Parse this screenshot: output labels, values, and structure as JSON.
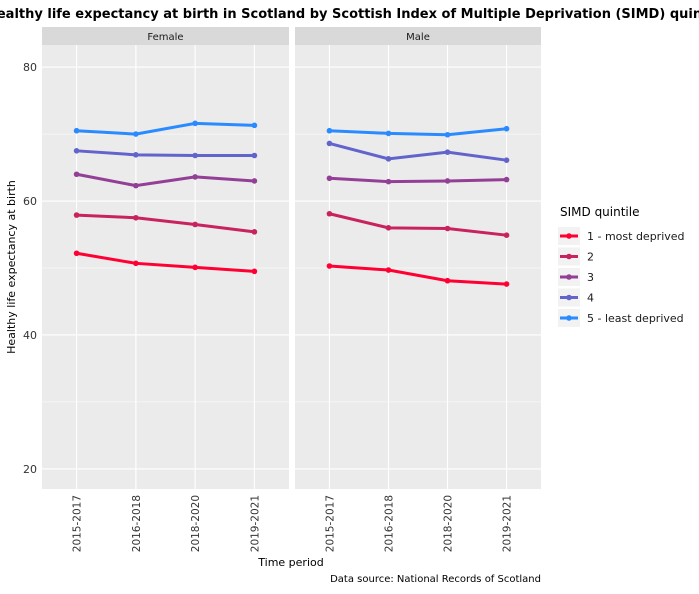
{
  "chart_data": {
    "type": "line",
    "title": "Healthy life expectancy at birth in Scotland by Scottish Index of Multiple Deprivation (SIMD) quintile",
    "xlabel": "Time period",
    "ylabel": "Healthy life expectancy at birth",
    "caption": "Data source: National Records of Scotland",
    "legend_title": "SIMD quintile",
    "legend_position": "right",
    "grid": true,
    "ylim": [
      17,
      83.3
    ],
    "yticks": [
      20,
      40,
      60,
      80
    ],
    "categories": [
      "2015-2017",
      "2016-2018",
      "2018-2020",
      "2019-2021"
    ],
    "panels": [
      {
        "name": "Female",
        "series": [
          {
            "name": "1 - most deprived",
            "color": "#ff0033",
            "values": [
              52.2,
              50.7,
              50.1,
              49.5
            ]
          },
          {
            "name": "2",
            "color": "#c8235e",
            "values": [
              57.9,
              57.5,
              56.5,
              55.4
            ]
          },
          {
            "name": "3",
            "color": "#933f96",
            "values": [
              64.0,
              62.3,
              63.6,
              63.0
            ]
          },
          {
            "name": "4",
            "color": "#6264cc",
            "values": [
              67.5,
              66.9,
              66.8,
              66.8
            ]
          },
          {
            "name": "5 - least deprived",
            "color": "#2a8bff",
            "values": [
              70.5,
              70.0,
              71.6,
              71.3
            ]
          }
        ]
      },
      {
        "name": "Male",
        "series": [
          {
            "name": "1 - most deprived",
            "color": "#ff0033",
            "values": [
              50.3,
              49.7,
              48.1,
              47.6
            ]
          },
          {
            "name": "2",
            "color": "#c8235e",
            "values": [
              58.1,
              56.0,
              55.9,
              54.9
            ]
          },
          {
            "name": "3",
            "color": "#933f96",
            "values": [
              63.4,
              62.9,
              63.0,
              63.2
            ]
          },
          {
            "name": "4",
            "color": "#6264cc",
            "values": [
              68.6,
              66.3,
              67.3,
              66.1
            ]
          },
          {
            "name": "5 - least deprived",
            "color": "#2a8bff",
            "values": [
              70.5,
              70.1,
              69.9,
              70.8
            ]
          }
        ]
      }
    ]
  }
}
